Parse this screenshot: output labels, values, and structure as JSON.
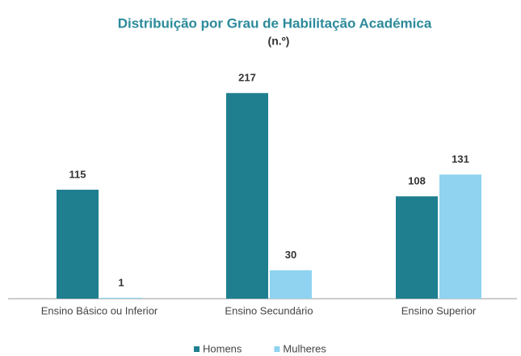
{
  "chart_data": {
    "type": "bar",
    "title": "Distribuição por Grau de Habilitação Académica",
    "subtitle": "(n.º)",
    "categories": [
      "Ensino Básico ou Inferior",
      "Ensino Secundário",
      "Ensino Superior"
    ],
    "series": [
      {
        "name": "Homens",
        "color": "#1f7f8f",
        "values": [
          115,
          217,
          108
        ]
      },
      {
        "name": "Mulheres",
        "color": "#8fd3f0",
        "values": [
          1,
          30,
          131
        ]
      }
    ],
    "ylim": [
      0,
      230
    ],
    "legend": "bottom"
  }
}
